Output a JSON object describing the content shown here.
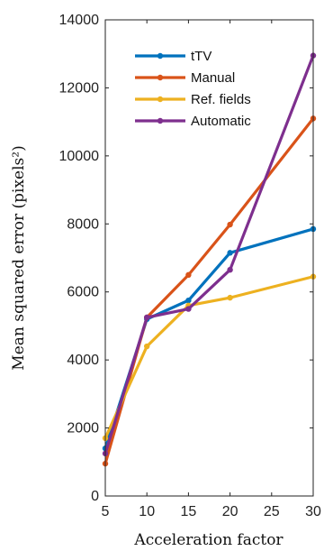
{
  "chart_data": {
    "type": "line",
    "xlabel": "Acceleration factor",
    "ylabel": "Mean squared error (pixels²)",
    "x": [
      5,
      10,
      15,
      20,
      30
    ],
    "xlim": [
      5,
      30
    ],
    "ylim": [
      0,
      14000
    ],
    "xticks": [
      5,
      10,
      15,
      20,
      25,
      30
    ],
    "yticks": [
      0,
      2000,
      4000,
      6000,
      8000,
      10000,
      12000,
      14000
    ],
    "grid": false,
    "legend_position": "top-left",
    "series": [
      {
        "name": "tTV",
        "color": "#0072BD",
        "values": [
          1400,
          5200,
          5750,
          7150,
          7850
        ]
      },
      {
        "name": "Manual",
        "color": "#D95319",
        "values": [
          950,
          5250,
          6500,
          7980,
          11100
        ]
      },
      {
        "name": "Ref. fields",
        "color": "#EDB120",
        "values": [
          1700,
          4400,
          5600,
          5830,
          6450
        ]
      },
      {
        "name": "Automatic",
        "color": "#7E2F8E",
        "values": [
          1250,
          5250,
          5500,
          6650,
          12950
        ]
      }
    ]
  }
}
